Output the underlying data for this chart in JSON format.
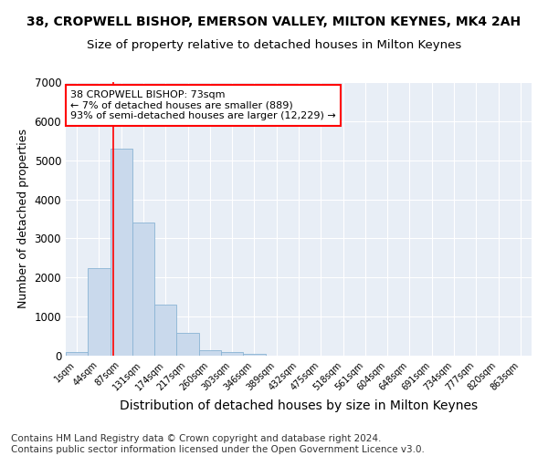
{
  "title1": "38, CROPWELL BISHOP, EMERSON VALLEY, MILTON KEYNES, MK4 2AH",
  "title2": "Size of property relative to detached houses in Milton Keynes",
  "xlabel": "Distribution of detached houses by size in Milton Keynes",
  "ylabel": "Number of detached properties",
  "bar_color": "#c9d9ec",
  "bar_edge_color": "#8ab4d4",
  "background_color": "#e8eef6",
  "grid_color": "white",
  "tick_labels": [
    "1sqm",
    "44sqm",
    "87sqm",
    "131sqm",
    "174sqm",
    "217sqm",
    "260sqm",
    "303sqm",
    "346sqm",
    "389sqm",
    "432sqm",
    "475sqm",
    "518sqm",
    "561sqm",
    "604sqm",
    "648sqm",
    "691sqm",
    "734sqm",
    "777sqm",
    "820sqm",
    "863sqm"
  ],
  "bar_values": [
    100,
    2250,
    5300,
    3400,
    1300,
    580,
    150,
    90,
    55,
    5,
    3,
    0,
    0,
    0,
    0,
    0,
    0,
    0,
    0,
    0,
    0
  ],
  "ylim": [
    0,
    7000
  ],
  "yticks": [
    0,
    1000,
    2000,
    3000,
    4000,
    5000,
    6000,
    7000
  ],
  "red_line_x": 1.63,
  "annotation_text": "38 CROPWELL BISHOP: 73sqm\n← 7% of detached houses are smaller (889)\n93% of semi-detached houses are larger (12,229) →",
  "annotation_box_color": "white",
  "annotation_box_edge_color": "red",
  "footer": "Contains HM Land Registry data © Crown copyright and database right 2024.\nContains public sector information licensed under the Open Government Licence v3.0.",
  "title1_fontsize": 10,
  "title2_fontsize": 9.5,
  "xlabel_fontsize": 10,
  "ylabel_fontsize": 9,
  "footer_fontsize": 7.5
}
